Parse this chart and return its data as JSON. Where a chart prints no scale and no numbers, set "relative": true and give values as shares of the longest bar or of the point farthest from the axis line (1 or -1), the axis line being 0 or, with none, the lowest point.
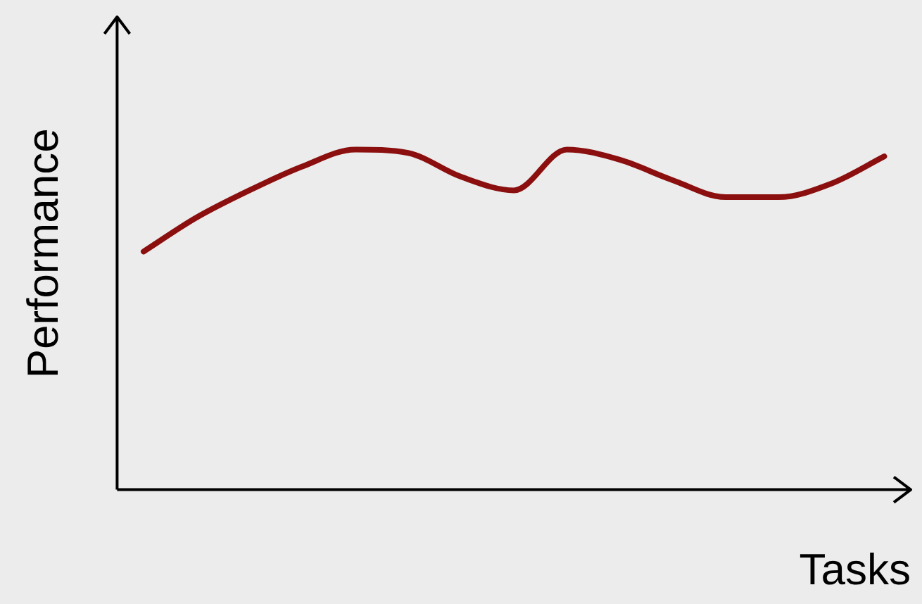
{
  "chart_data": {
    "type": "line",
    "relative": true,
    "xlabel": "Tasks",
    "ylabel": "Performance",
    "legend": false,
    "grid": false,
    "marker": "none",
    "categories": [
      null,
      null,
      null,
      null,
      null,
      null,
      null,
      null,
      null,
      null,
      null,
      null,
      null,
      null,
      null
    ],
    "series": [
      {
        "color": "#8b0f0f",
        "values": [
          0.7,
          0.8,
          0.88,
          0.95,
          1.0,
          0.99,
          0.92,
          0.88,
          1.0,
          0.97,
          0.91,
          0.86,
          0.86,
          0.9,
          0.98
        ]
      }
    ]
  }
}
